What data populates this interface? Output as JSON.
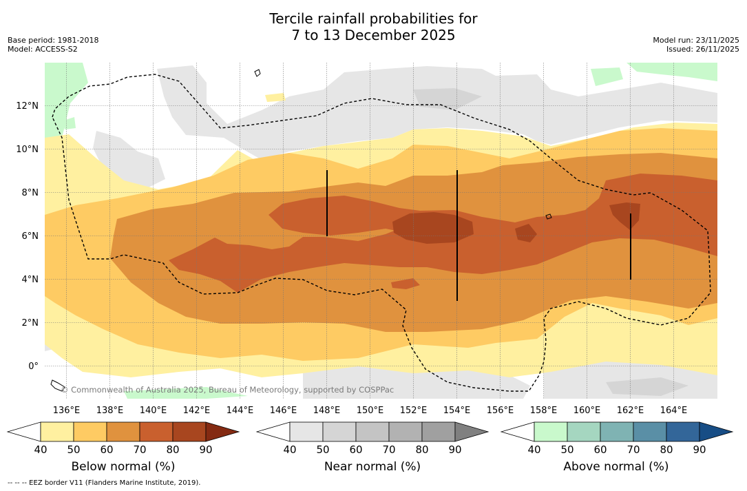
{
  "title": {
    "line1": "Tercile rainfall probabilities for",
    "line2": "7 to 13 December 2025"
  },
  "left_meta": {
    "base_period": "Base period: 1981-2018",
    "model": "Model: ACCESS-S2"
  },
  "right_meta": {
    "model_run": "Model run: 23/11/2025",
    "issued": "Issued: 26/11/2025"
  },
  "credit": "© Commonwealth of Australia 2025, Bureau of Meteorology, supported by COSPPac",
  "footnote": "--  --  -- EEZ border V11 (Flanders Marine Institute, 2019).",
  "map": {
    "lon_ticks": [
      "136°E",
      "138°E",
      "140°E",
      "142°E",
      "144°E",
      "146°E",
      "148°E",
      "150°E",
      "152°E",
      "154°E",
      "156°E",
      "158°E",
      "160°E",
      "162°E",
      "164°E"
    ],
    "lat_ticks": [
      "12°N",
      "10°N",
      "8°N",
      "6°N",
      "4°N",
      "2°N",
      "0°"
    ]
  },
  "colorbars": [
    {
      "title": "Below normal (%)",
      "ticks": [
        "40",
        "50",
        "60",
        "70",
        "80",
        "90"
      ],
      "colors": [
        "#ffffff",
        "#fff0a0",
        "#fecb63",
        "#e0923e",
        "#c9602e",
        "#a8461f",
        "#842a12"
      ]
    },
    {
      "title": "Near normal (%)",
      "ticks": [
        "40",
        "50",
        "60",
        "70",
        "80",
        "90"
      ],
      "colors": [
        "#ffffff",
        "#e6e6e6",
        "#d5d5d5",
        "#c4c4c4",
        "#b2b2b2",
        "#a0a0a0",
        "#808080"
      ]
    },
    {
      "title": "Above normal (%)",
      "ticks": [
        "40",
        "50",
        "60",
        "70",
        "80",
        "90"
      ],
      "colors": [
        "#ffffff",
        "#c9f9cc",
        "#a5d6c0",
        "#7fb3b3",
        "#5a8fa6",
        "#336699",
        "#174d85"
      ]
    }
  ]
}
